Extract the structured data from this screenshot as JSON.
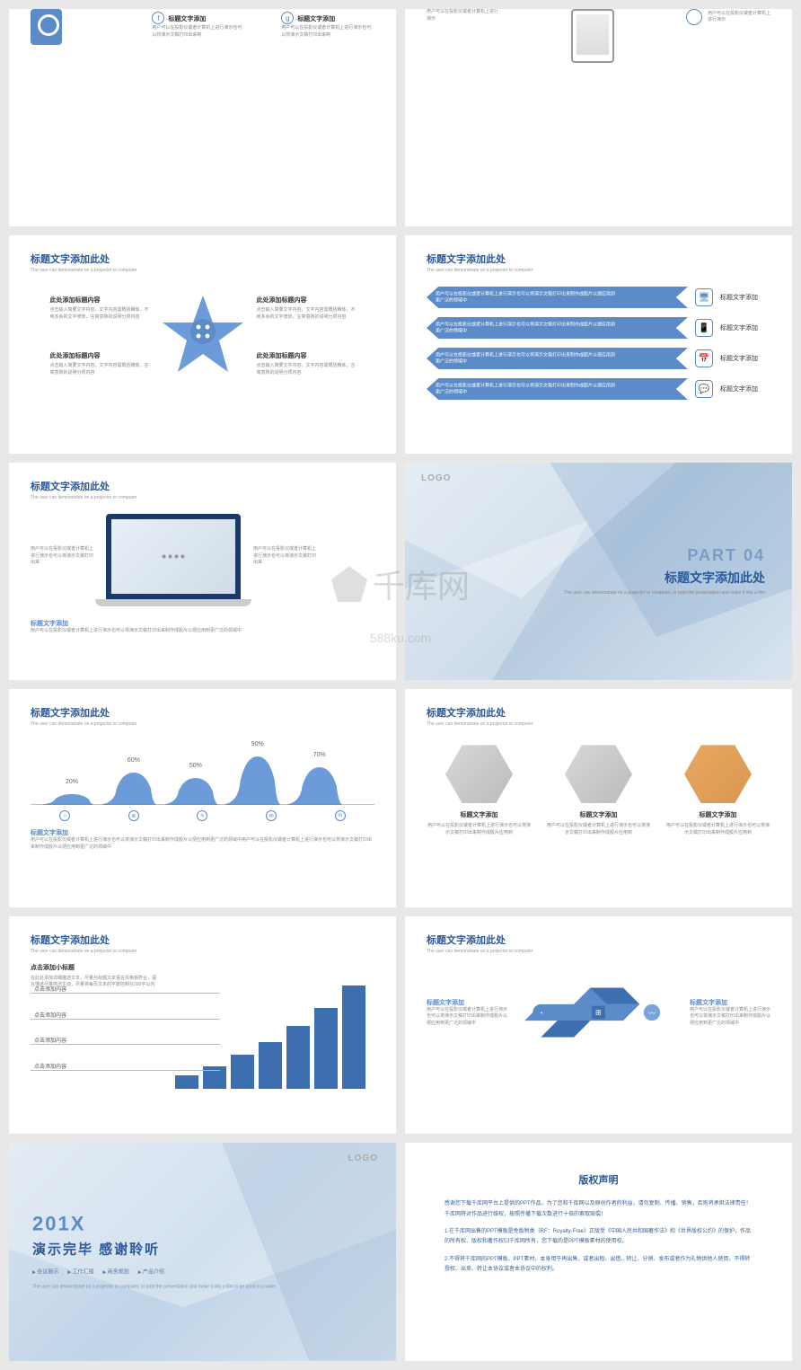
{
  "common": {
    "title": "标题文字添加此处",
    "subtitle": "The user can demonstrate on a projector or computer",
    "textLabel": "标题文字添加",
    "bodyShort": "用户可以在投影仪或者计算机上进行演示也可以将演示文稿打印出来",
    "bodyLong": "用户可以在投影仪或者计算机上进行演示也可以将演示文稿打印出来制作成胶片以便应用到更广泛的领域中",
    "bodyLong2": "用户可以在投影仪或者计算机上进行演示也可以将演示文稿打印出来制作成胶片以便应用到更广泛的领域中用户可以在投影仪或者计算机上进行演示也可以将演示文稿打印出来制作成胶片以便应用到更广泛的领域中"
  },
  "colors": {
    "primary": "#5b8bc8",
    "dark": "#2a5899",
    "barDark": "#3d6fb0",
    "bg": "#ffffff"
  },
  "s1": {
    "items": [
      {
        "icon": "f",
        "label": "标题文字添加",
        "desc": "用户可以在投影仪或者计算机上进行演示也可以将演示文稿打印出来制"
      },
      {
        "icon": "g",
        "label": "标题文字添加",
        "desc": "用户可以在投影仪或者计算机上进行演示也可以将演示文稿打印出来制"
      }
    ]
  },
  "s2": {
    "desc": "用户可以在投影仪或者计算机上进行演示"
  },
  "s3": {
    "quadrants": [
      {
        "pos": "q-tl",
        "label": "此处添加标题内容",
        "desc": "点击输入简要文字内容，文字内容需概括精炼，不用多余的文字修饰，言简意赅的说明分项内容"
      },
      {
        "pos": "q-tr",
        "label": "此处添加标题内容",
        "desc": "点击输入简要文字内容，文字内容需概括精炼，不用多余的文字修饰，言简意赅的说明分项内容"
      },
      {
        "pos": "q-bl",
        "label": "此处添加标题内容",
        "desc": "点击输入简要文字内容，文字内容需概括精炼，言简意赅的说明分项内容"
      },
      {
        "pos": "q-br",
        "label": "此处添加标题内容",
        "desc": "点击输入简要文字内容，文字内容需概括精炼，言简意赅的说明分项内容"
      }
    ]
  },
  "s4": {
    "rows": [
      {
        "icon": "🖥",
        "label": "标题文字添加",
        "text": "用户可以在投影仪或者计算机上进行演示也可以将演示文稿打印出来制作成胶片以便应用到更广泛的领域中"
      },
      {
        "icon": "📱",
        "label": "标题文字添加",
        "text": "用户可以在投影仪或者计算机上进行演示也可以将演示文稿打印出来制作成胶片以便应用到更广泛的领域中"
      },
      {
        "icon": "📅",
        "label": "标题文字添加",
        "text": "用户可以在投影仪或者计算机上进行演示也可以将演示文稿打印出来制作成胶片以便应用到更广泛的领域中"
      },
      {
        "icon": "💬",
        "label": "标题文字添加",
        "text": "用户可以在投影仪或者计算机上进行演示也可以将演示文稿打印出来制作成胶片以便应用到更广泛的领域中"
      }
    ]
  },
  "s5": {
    "left": "用户可以在投影仪或者计算机上进行演示也可以将演示文稿打印出来",
    "right": "用户可以在投影仪或者计算机上进行演示也可以将演示文稿打印出来",
    "bottomLabel": "标题文字添加",
    "bottom": "用户可以在投影仪或者计算机上进行演示也可以将演示文稿打印出来制作成胶片以便应用到更广泛的领域中"
  },
  "s6": {
    "logo": "LOGO",
    "part": "PART 04",
    "title": "标题文字添加此处",
    "sub": "The user can demonstrate on a projector or computer, or\nprint the presentation\nand make it into a film"
  },
  "s7": {
    "values": [
      20,
      60,
      50,
      90,
      70
    ],
    "labels": [
      "20%",
      "60%",
      "50%",
      "90%",
      "70%"
    ],
    "positions": [
      12,
      30,
      48,
      66,
      84
    ],
    "icons": [
      "⌂",
      "⊕",
      "✎",
      "✉",
      "in"
    ],
    "footLabel": "标题文字添加",
    "foot": "用户可以在投影仪或者计算机上进行演示也可以将演示文稿打印出来制作成胶片以便应用到更广泛的领域中用户可以在投影仪或者计算机上进行演示也可以将演示文稿打印出来制作成胶片以便应用到更广泛的领域中"
  },
  "s8": {
    "items": [
      {
        "label": "标题文字添加",
        "desc": "用户可以在投影仪或者计算机上进行演示也可以将演示文稿打印出来制作成胶片应用到"
      },
      {
        "label": "标题文字添加",
        "desc": "用户可以在投影仪或者计算机上进行演示也可以将演示文稿打印出来制作成胶片应用到"
      },
      {
        "label": "标题文字添加",
        "desc": "用户可以在投影仪或者计算机上进行演示也可以将演示文稿打印出来制作成胶片应用到"
      }
    ]
  },
  "s9": {
    "subLabel": "点击添加小标题",
    "subDesc": "在此处添加详细描述文本，尽量与标题文本语言风格相符合，语言描述尽量简洁生动，尽量将每页文本的字数控制在200字以内",
    "lines": [
      "点击添加内容",
      "点击添加内容",
      "点击添加内容",
      "点击添加内容"
    ],
    "linePositions": [
      18,
      40,
      62,
      84
    ],
    "bars": [
      15,
      25,
      38,
      52,
      70,
      90,
      115
    ],
    "barColor": "#3d6fb0"
  },
  "s10": {
    "labels": [
      "标题文字添加",
      "标题文字添加",
      "标题文字添加",
      "标题文字添加"
    ],
    "icons": [
      "◔",
      "⊞",
      "〰"
    ],
    "colors": [
      "#3d6fb0",
      "#5b8bc8",
      "#7aa5d8",
      "#3d6fb0"
    ],
    "left": {
      "label": "标题文字添加",
      "desc": "用户可以在投影仪或者计算机上进行演示也可以将演示文稿打印出来制作成胶片以便应用到更广泛的领域中"
    },
    "right": {
      "label": "标题文字添加",
      "desc": "用户可以在投影仪或者计算机上进行演示也可以将演示文稿打印出来制作成胶片以便应用到更广泛的领域中"
    }
  },
  "s11": {
    "logo": "LOGO",
    "year": "201X",
    "thanks": "演示完毕 感谢聆听",
    "tags": [
      "会议展示",
      "工作汇报",
      "商务规划",
      "产品介绍"
    ],
    "sub": "The user can demonstrate on a projector or computer,\nor print the presentation and make it into\na film to be used in a wider"
  },
  "s12": {
    "title": "版权声明",
    "p1": "感谢您下载千库网平台上提供的PPT作品，为了您和千库网以及原创作者的利益，请勿复制、传播、销售，否则将承担法律责任！千库网将对作品进行维权，按照传播下载次数进行十倍的索取赔偿！",
    "p2": "1.在千库网出售的PPT模板是免版税类（RF：Royalty-Free）正版受《中国人民共和国著作法》和《世界版权公约》的保护，作品的所有权、版权和著作权归千库网所有，您下载的是PPT模板素材的使用权。",
    "p3": "2.不得将千库网的PPT模板、PPT素材，本身用于再出售，或者出租、出借、转让、分销、发布或者作为礼物供他人使用，不得转授权、出卖、转让本协议或者本协议中的权利。"
  },
  "watermark": {
    "main": "千库网",
    "sub": "588ku.com"
  }
}
